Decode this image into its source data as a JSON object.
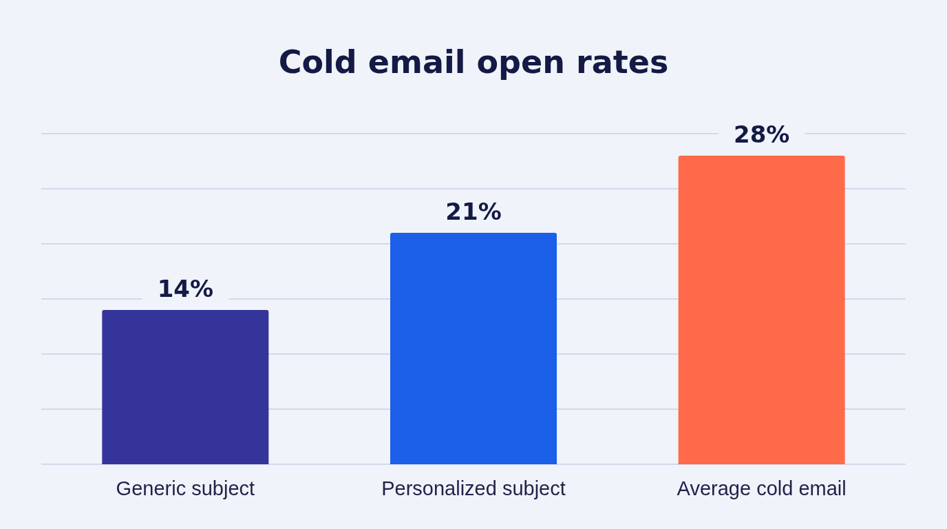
{
  "chart_data": {
    "type": "bar",
    "title": "Cold email open rates",
    "categories": [
      "Generic subject",
      "Personalized subject",
      "Average cold email"
    ],
    "values": [
      14,
      21,
      28
    ],
    "colors": [
      "#35349a",
      "#1c5fe8",
      "#ff6a4b"
    ],
    "value_labels": [
      "14%",
      "21%",
      "28%"
    ],
    "ylim": [
      0,
      30
    ],
    "yticks": [
      {
        "value": 0,
        "label": null
      },
      {
        "value": 5,
        "label": null
      },
      {
        "value": 10,
        "label": null
      },
      {
        "value": 15,
        "label": null
      },
      {
        "value": 20,
        "label": null
      },
      {
        "value": 25,
        "label": null
      },
      {
        "value": 30,
        "label": null
      }
    ],
    "grid": "y",
    "tick_labels": "x"
  }
}
